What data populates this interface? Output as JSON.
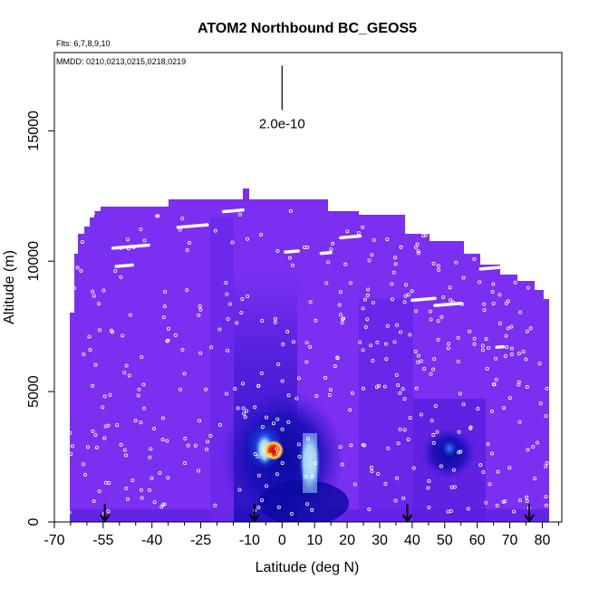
{
  "chart_data": {
    "type": "heatmap",
    "title": "ATOM2 Northbound BC_GEOS5",
    "subtitle_flights": "Flts: 6,7,8,9,10",
    "subtitle_dates": "MMDD: 0210,0213,0215,0218,0219",
    "xlabel": "Latitude (deg N)",
    "ylabel": "Altitude (m)",
    "xlim": [
      -70,
      86
    ],
    "ylim": [
      0,
      18000
    ],
    "x_ticks": [
      -70,
      -55,
      -40,
      -25,
      -10,
      0,
      10,
      20,
      30,
      40,
      50,
      60,
      70,
      80
    ],
    "x_minor_ticks": [
      -65,
      -60,
      -50,
      -45,
      -35,
      -30,
      -20,
      -15,
      -5,
      5,
      15,
      25,
      35,
      45,
      55,
      65,
      75,
      85
    ],
    "y_ticks": [
      0,
      5000,
      10000,
      15000
    ],
    "scale_bar_label": "2.0e-10",
    "scale_bar_x": 0,
    "scale_bar_y": [
      15800,
      17500
    ],
    "colors": {
      "background_field": "#7b2ff0",
      "medium": "#5a1ee0",
      "dark": "#2a10c8",
      "deep": "#0a0aa0",
      "light_blue": "#3a7ff5",
      "cyan": "#c8eefb",
      "red": "#d40000",
      "yellow": "#ffd84a"
    },
    "profile_markers_lat": [
      -54.5,
      -8.5,
      38.5,
      76
    ],
    "flight_level_segments": [
      {
        "x": [
          -62,
          -58
        ],
        "y": 11800
      },
      {
        "x": [
          -52,
          -41
        ],
        "y": 10500
      },
      {
        "x": [
          -32,
          -23
        ],
        "y": 11300
      },
      {
        "x": [
          -18,
          -12
        ],
        "y": 11900
      },
      {
        "x": [
          -51,
          -46
        ],
        "y": 9800
      },
      {
        "x": [
          1,
          5
        ],
        "y": 10350
      },
      {
        "x": [
          12,
          15
        ],
        "y": 10300
      },
      {
        "x": [
          18,
          24
        ],
        "y": 10900
      },
      {
        "x": [
          38,
          42
        ],
        "y": 11850
      },
      {
        "x": [
          40,
          47
        ],
        "y": 8500
      },
      {
        "x": [
          47,
          55
        ],
        "y": 8300
      },
      {
        "x": [
          61,
          70
        ],
        "y": 9700
      },
      {
        "x": [
          66,
          68
        ],
        "y": 6700
      }
    ],
    "high_value_regions": [
      {
        "lat": [
          -10,
          2
        ],
        "alt": [
          1500,
          4000
        ],
        "level": "very high (red/yellow core near -3 to -1 deg, 2500-3200 m)"
      },
      {
        "lat": [
          3,
          12
        ],
        "alt": [
          800,
          3500
        ],
        "level": "high (cyan)"
      },
      {
        "lat": [
          46,
          54
        ],
        "alt": [
          2400,
          3200
        ],
        "level": "moderate (light blue)"
      }
    ]
  }
}
